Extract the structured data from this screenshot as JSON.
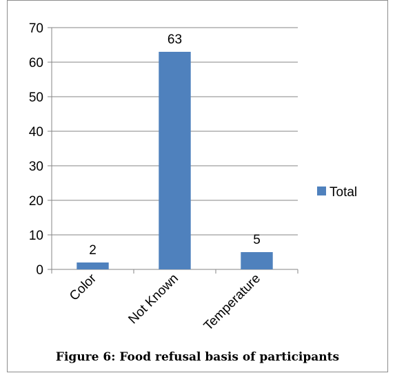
{
  "chart_data": {
    "type": "bar",
    "categories": [
      "Color",
      "Not Known",
      "Temperature"
    ],
    "series": [
      {
        "name": "Total",
        "values": [
          2,
          63,
          5
        ],
        "color": "#4f81bd"
      }
    ],
    "ylim": [
      0,
      70
    ],
    "yticks": [
      0,
      10,
      20,
      30,
      40,
      50,
      60,
      70
    ],
    "grid": true,
    "legend_position": "right",
    "data_labels": true
  },
  "caption": "Figure 6: Food refusal basis  of participants"
}
